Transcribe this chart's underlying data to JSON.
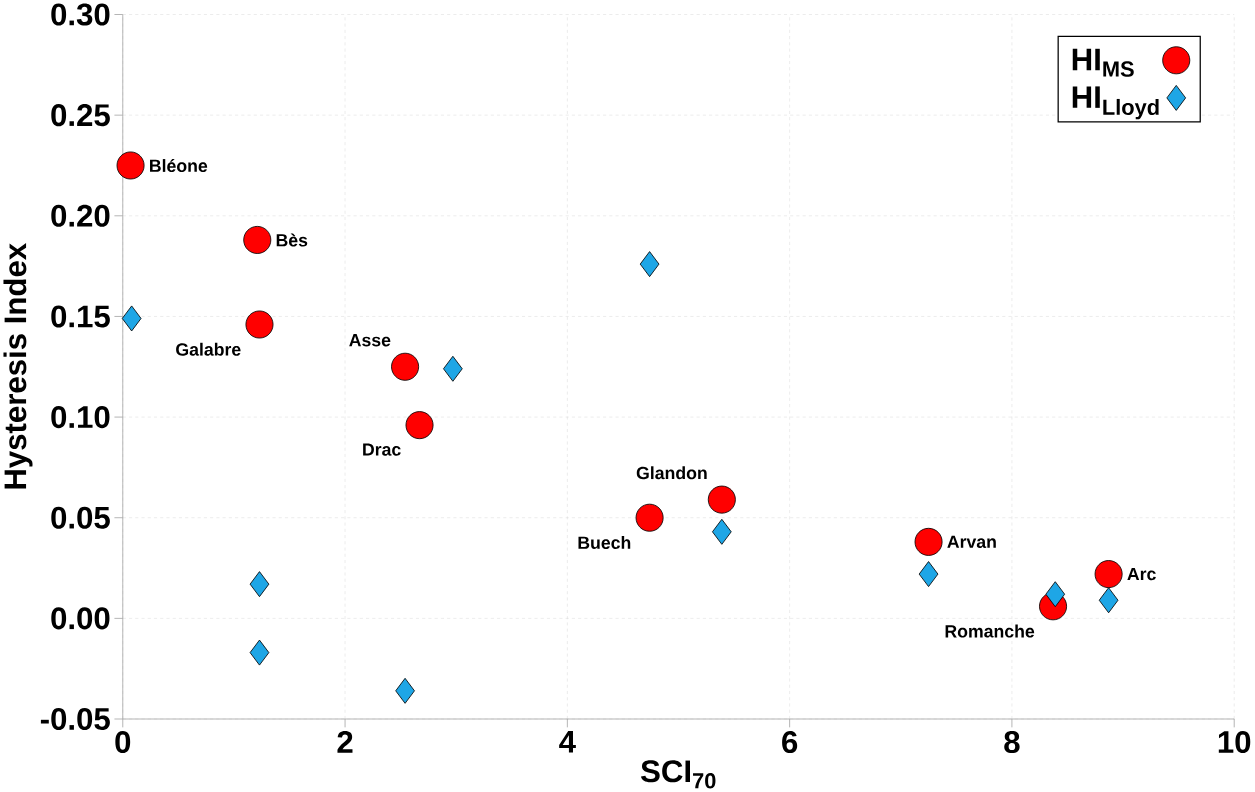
{
  "chart_data": {
    "type": "scatter",
    "xlabel": "SCI$_{70}$",
    "ylabel": "Hysteresis Index",
    "xlim": [
      0,
      10
    ],
    "ylim": [
      -0.05,
      0.3
    ],
    "xticks": [
      0,
      2,
      4,
      6,
      8,
      10
    ],
    "yticks": [
      {
        "value": -0.05,
        "label": "-0.05"
      },
      {
        "value": 0,
        "label": "0.00"
      },
      {
        "value": 0.05,
        "label": "0.05"
      },
      {
        "value": 0.1,
        "label": "0.10"
      },
      {
        "value": 0.15,
        "label": "0.15"
      },
      {
        "value": 0.2,
        "label": "0.20"
      },
      {
        "value": 0.25,
        "label": "0.25"
      },
      {
        "value": 0.3,
        "label": "0.30"
      }
    ],
    "grid": true,
    "legend": "top right",
    "series": [
      {
        "name": "HI$_{MS}$",
        "color": "#ff0000",
        "marker": "circle",
        "x": [
          0.07,
          1.21,
          1.23,
          2.54,
          2.67,
          4.74,
          5.39,
          7.25,
          8.37,
          8.87
        ],
        "values": [
          0.225,
          0.188,
          0.146,
          0.125,
          0.096,
          0.05,
          0.059,
          0.038,
          0.006,
          0.022
        ]
      },
      {
        "name": "HI$_{Lloyd}$",
        "color": "#1ea6e6",
        "marker": "diamond",
        "x": [
          0.08,
          4.74,
          2.97,
          1.23,
          1.23,
          2.54,
          5.39,
          7.25,
          8.39,
          8.87
        ],
        "values": [
          0.149,
          0.176,
          0.124,
          0.017,
          -0.017,
          -0.036,
          0.043,
          0.022,
          0.012,
          0.009
        ]
      }
    ],
    "annotations": [
      {
        "text": "Bléone",
        "x": 0.07,
        "y": 0.225
      },
      {
        "text": "Bès",
        "x": 1.21,
        "y": 0.188
      },
      {
        "text": "Galabre",
        "x": 1.23,
        "y": 0.146
      },
      {
        "text": "Asse",
        "x": 2.54,
        "y": 0.125
      },
      {
        "text": "Drac",
        "x": 2.67,
        "y": 0.096
      },
      {
        "text": "Buech",
        "x": 4.74,
        "y": 0.05
      },
      {
        "text": "Glandon",
        "x": 5.39,
        "y": 0.059
      },
      {
        "text": "Arvan",
        "x": 7.25,
        "y": 0.038
      },
      {
        "text": "Romanche",
        "x": 8.37,
        "y": 0.006
      },
      {
        "text": "Arc",
        "x": 8.87,
        "y": 0.022
      }
    ]
  }
}
